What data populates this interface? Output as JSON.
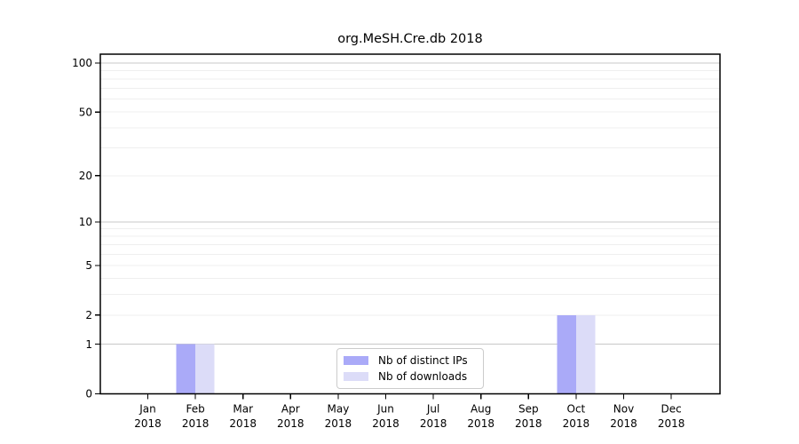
{
  "chart_data": {
    "type": "bar",
    "title": "org.MeSH.Cre.db 2018",
    "categories": [
      "Jan",
      "Feb",
      "Mar",
      "Apr",
      "May",
      "Jun",
      "Jul",
      "Aug",
      "Sep",
      "Oct",
      "Nov",
      "Dec"
    ],
    "year_label": "2018",
    "series": [
      {
        "name": "Nb of distinct IPs",
        "color": "#aaaaf8",
        "values": [
          0,
          1,
          0,
          0,
          0,
          0,
          0,
          0,
          0,
          2,
          0,
          0
        ]
      },
      {
        "name": "Nb of downloads",
        "color": "#dcdcf8",
        "values": [
          0,
          1,
          0,
          0,
          0,
          0,
          0,
          0,
          0,
          2,
          0,
          0
        ]
      }
    ],
    "xlabel": "",
    "ylabel": "",
    "yscale": "log1p",
    "yticks": [
      0,
      1,
      2,
      5,
      10,
      20,
      50,
      100
    ],
    "ylim": [
      0,
      115
    ],
    "grid": {
      "enabled": true,
      "major_values": [
        1,
        10,
        100
      ],
      "minor_values": [
        2,
        3,
        4,
        5,
        6,
        7,
        8,
        9,
        20,
        30,
        40,
        50,
        60,
        70,
        80,
        90
      ],
      "major_color": "#c8c8c8",
      "minor_color": "#efefef"
    },
    "legend": {
      "position": "lower-center",
      "labels": [
        "Nb of distinct IPs",
        "Nb of downloads"
      ]
    },
    "axis_color": "#000000",
    "text_color": "#000000"
  }
}
